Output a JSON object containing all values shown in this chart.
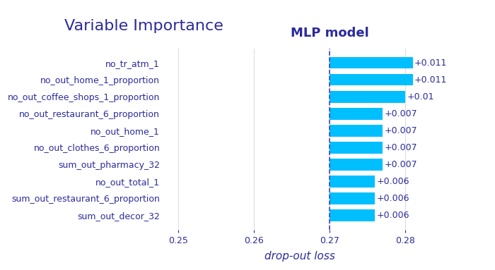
{
  "title": "Variable Importance",
  "subtitle": "MLP model",
  "xlabel": "drop-out loss",
  "variables": [
    "no_tr_atm_1",
    "no_out_home_1_proportion",
    "no_out_coffee_shops_1_proportion",
    "no_out_restaurant_6_proportion",
    "no_out_home_1",
    "no_out_clothes_6_proportion",
    "sum_out_pharmacy_32",
    "no_out_total_1",
    "sum_out_restaurant_6_proportion",
    "sum_out_decor_32"
  ],
  "values": [
    0.011,
    0.011,
    0.01,
    0.007,
    0.007,
    0.007,
    0.007,
    0.006,
    0.006,
    0.006
  ],
  "labels": [
    "+0.011",
    "+0.011",
    "+0.01",
    "+0.007",
    "+0.007",
    "+0.007",
    "+0.007",
    "+0.006",
    "+0.006",
    "+0.006"
  ],
  "baseline": 0.27,
  "bar_color": "#00BFFF",
  "text_color": "#2B2B9B",
  "dashed_line_color": "#4444BB",
  "xlim": [
    0.248,
    0.284
  ],
  "xticks": [
    0.25,
    0.26,
    0.27,
    0.28
  ],
  "background_color": "#FFFFFF",
  "grid_color": "#DDDDDD",
  "title_fontsize": 16,
  "subtitle_fontsize": 13,
  "label_fontsize": 9,
  "tick_fontsize": 9,
  "value_label_fontsize": 9
}
